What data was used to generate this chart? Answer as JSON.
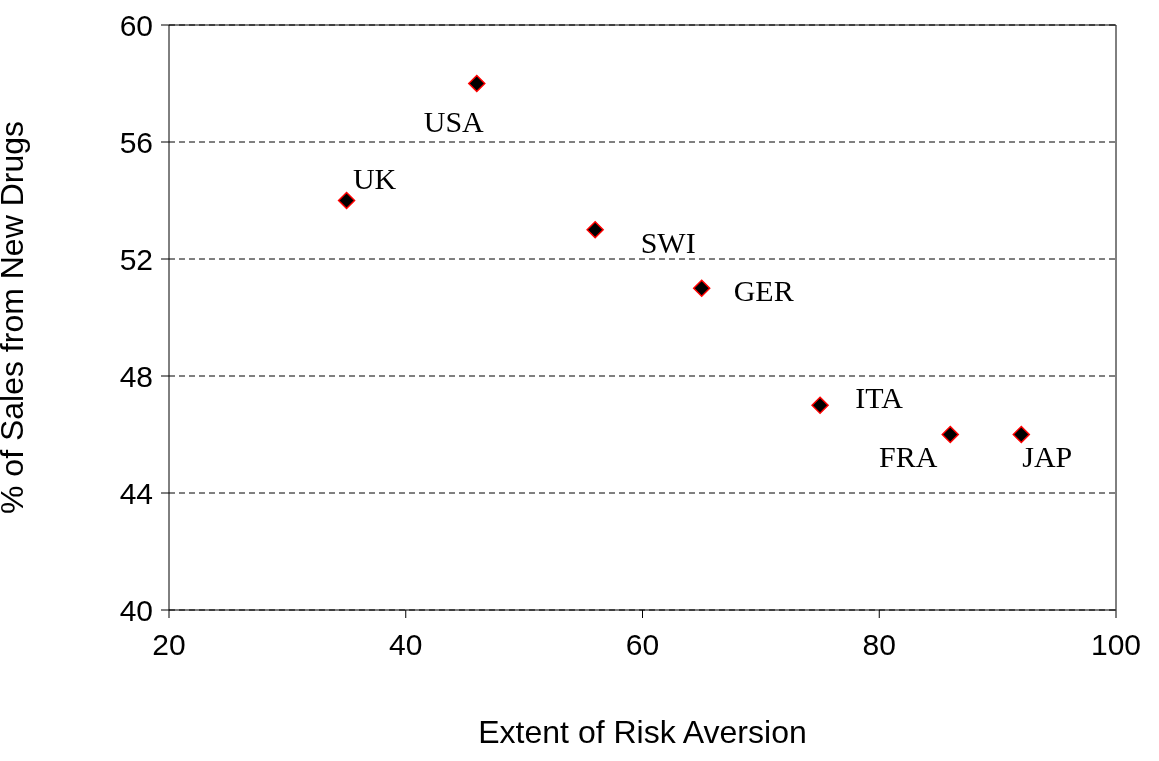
{
  "chart_data": {
    "type": "scatter",
    "xlabel": "Extent of Risk Aversion",
    "ylabel": "% of Sales from New Drugs",
    "x": [
      46,
      35,
      56,
      65,
      75,
      86,
      92
    ],
    "series": [
      {
        "color": "#000000",
        "values": [
          58,
          54,
          53,
          51,
          47,
          46,
          46
        ]
      }
    ],
    "xlim": [
      20,
      100
    ],
    "xticks": [
      20,
      40,
      60,
      80,
      100
    ],
    "ylim": [
      40,
      60
    ],
    "yticks": [
      40,
      44,
      48,
      52,
      56,
      60
    ],
    "grid": "y",
    "marker": "diamond",
    "annotations": [
      {
        "text": "USA",
        "x": 46,
        "y": 58
      },
      {
        "text": "UK",
        "x": 35,
        "y": 54
      },
      {
        "text": "SWI",
        "x": 56,
        "y": 53
      },
      {
        "text": "GER",
        "x": 65,
        "y": 51
      },
      {
        "text": "ITA",
        "x": 75,
        "y": 47
      },
      {
        "text": "FRA",
        "x": 86,
        "y": 46
      },
      {
        "text": "JAP",
        "x": 92,
        "y": 46
      }
    ]
  }
}
